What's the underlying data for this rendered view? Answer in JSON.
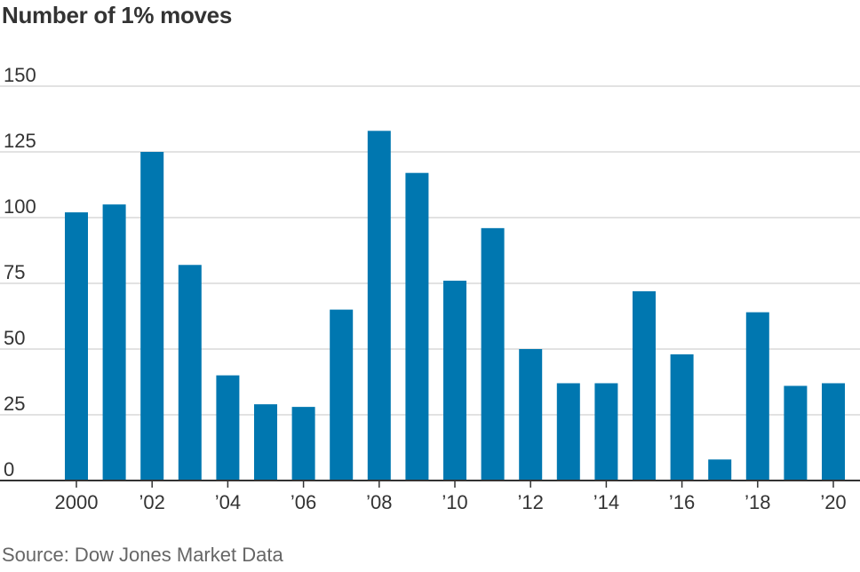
{
  "title": "Number of 1% moves",
  "source": "Source: Dow Jones Market Data",
  "chart_data": {
    "type": "bar",
    "categories": [
      "2000",
      "2001",
      "2002",
      "2003",
      "2004",
      "2005",
      "2006",
      "2007",
      "2008",
      "2009",
      "2010",
      "2011",
      "2012",
      "2013",
      "2014",
      "2015",
      "2016",
      "2017",
      "2018",
      "2019",
      "2020"
    ],
    "values": [
      102,
      105,
      125,
      82,
      40,
      29,
      28,
      65,
      133,
      117,
      76,
      96,
      50,
      37,
      37,
      72,
      48,
      8,
      64,
      36,
      37
    ],
    "xtick_labels": [
      "2000",
      "’02",
      "’04",
      "’06",
      "’08",
      "’10",
      "’12",
      "’14",
      "’16",
      "’18",
      "’20"
    ],
    "ytick_labels": [
      "0",
      "25",
      "50",
      "75",
      "100",
      "125",
      "150"
    ],
    "yticks": [
      0,
      25,
      50,
      75,
      100,
      125,
      150
    ],
    "ylim": [
      0,
      150
    ],
    "grid": true,
    "bar_color": "#0077b0"
  }
}
